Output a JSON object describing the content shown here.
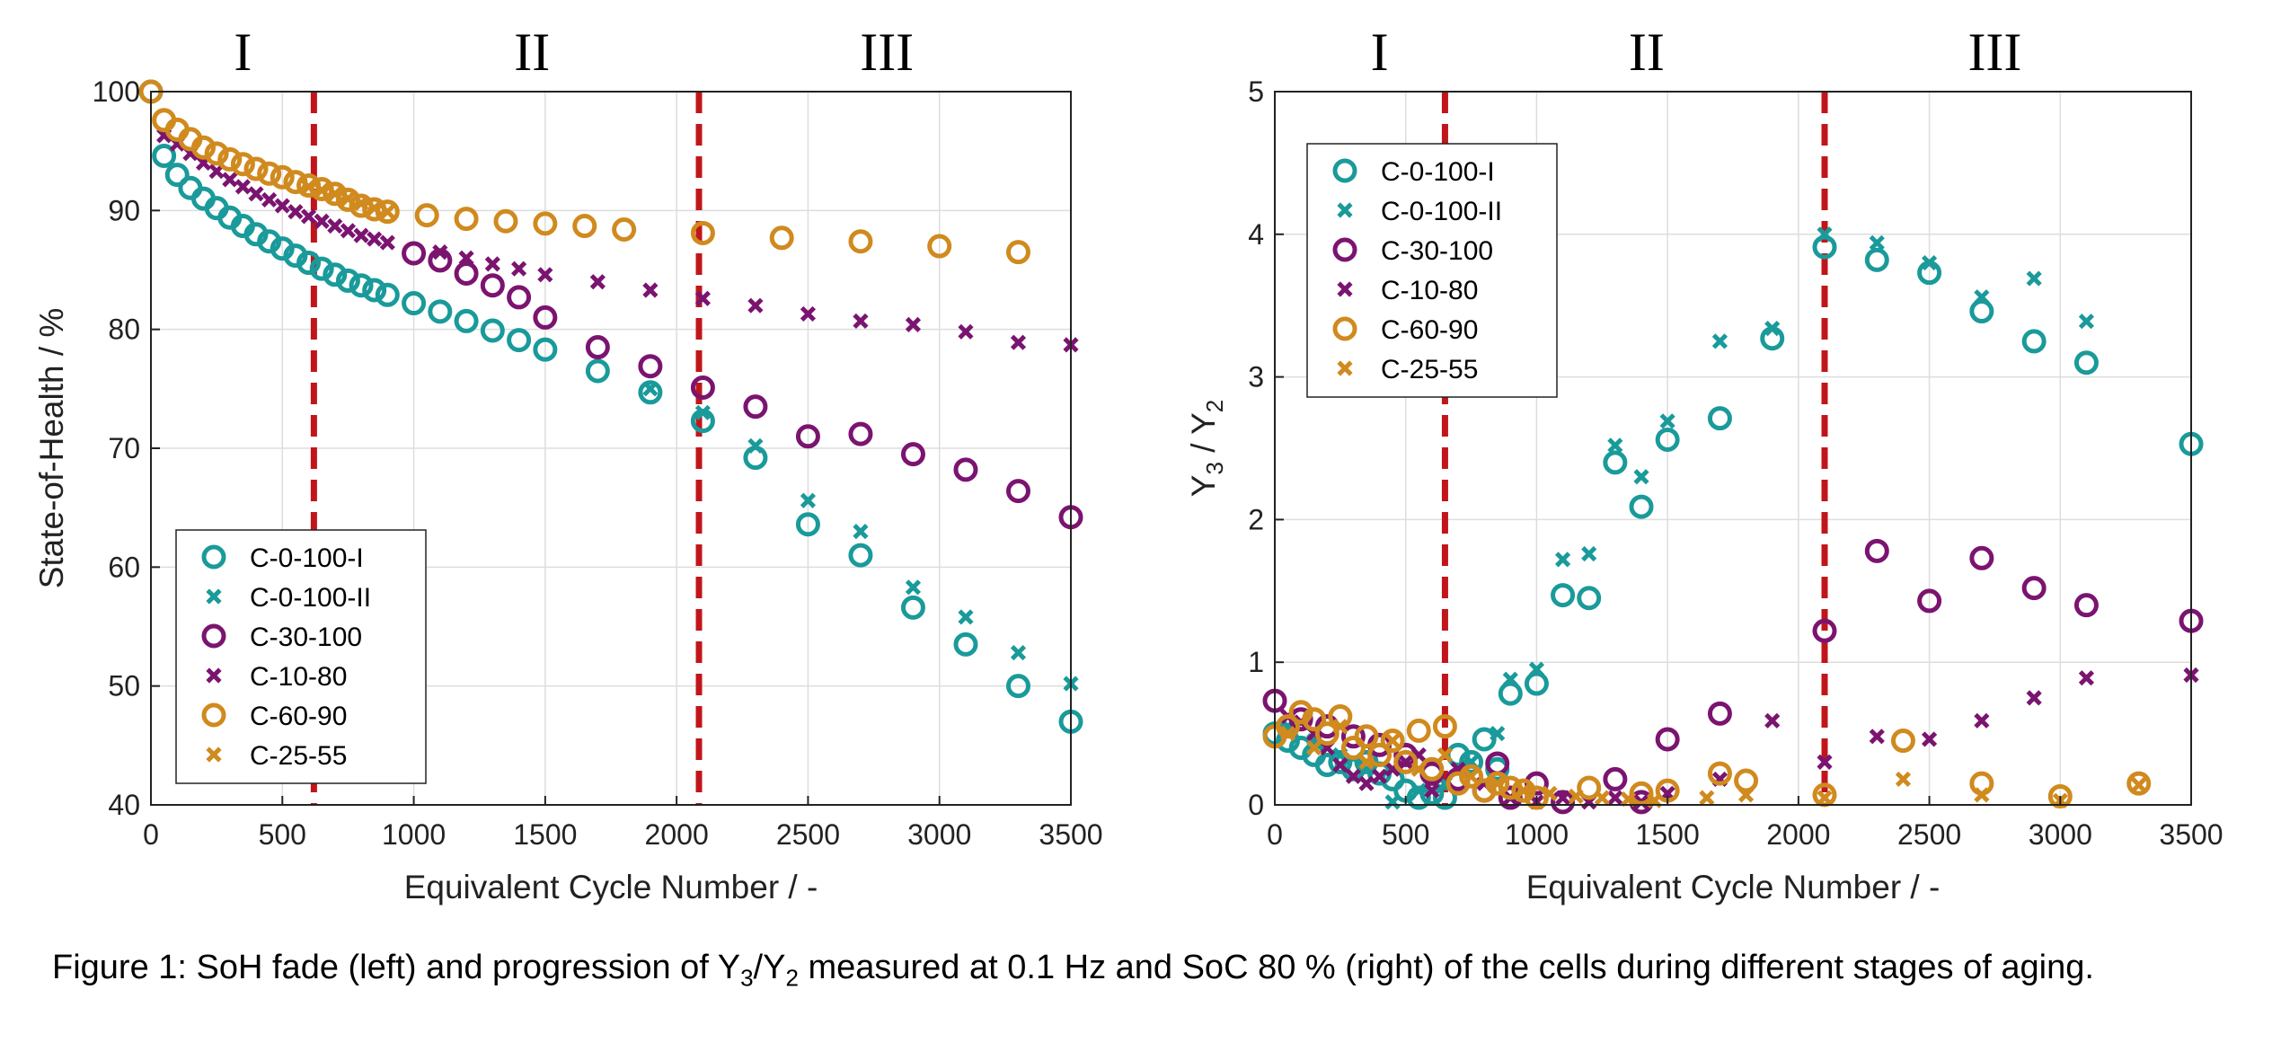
{
  "caption": {
    "part1": "Figure 1: SoH fade (left) and progression of Y",
    "sub1": "3",
    "part2": "/Y",
    "sub2": "2",
    "part3": " measured at 0.1 Hz and SoC 80 % (right) of the cells during different stages of aging."
  },
  "colors": {
    "teal": "#1a9a9a",
    "purple": "#7b1470",
    "orange": "#d08a1e",
    "stage_line": "#c0161b",
    "grid": "#dddddd"
  },
  "chart_data": [
    {
      "type": "scatter",
      "title": "",
      "xlabel": "Equivalent Cycle Number / -",
      "ylabel": "State-of-Health / %",
      "xlim": [
        0,
        3500
      ],
      "ylim": [
        40,
        100
      ],
      "xticks": [
        0,
        500,
        1000,
        1500,
        2000,
        2500,
        3000,
        3500
      ],
      "yticks": [
        40,
        50,
        60,
        70,
        80,
        90,
        100
      ],
      "grid": true,
      "legend_position": "bottom-left",
      "stage_lines": [
        620,
        2085
      ],
      "stages": [
        {
          "label": "I",
          "x": 350
        },
        {
          "label": "II",
          "x": 1450
        },
        {
          "label": "III",
          "x": 2800
        }
      ],
      "series": [
        {
          "name": "C-0-100-I",
          "marker": "o",
          "color": "#1a9a9a",
          "x": [
            0,
            50,
            100,
            150,
            200,
            250,
            300,
            350,
            400,
            450,
            500,
            550,
            600,
            650,
            700,
            750,
            800,
            850,
            900,
            1000,
            1100,
            1200,
            1300,
            1400,
            1500,
            1700,
            1900,
            2100,
            2300,
            2500,
            2700,
            2900,
            3100,
            3300,
            3500
          ],
          "y": [
            100,
            94.6,
            93.0,
            91.9,
            91.0,
            90.2,
            89.4,
            88.7,
            88.0,
            87.4,
            86.8,
            86.2,
            85.6,
            85.1,
            84.6,
            84.1,
            83.7,
            83.3,
            82.9,
            82.2,
            81.5,
            80.7,
            79.9,
            79.1,
            78.3,
            76.5,
            74.7,
            72.3,
            69.2,
            63.6,
            61.0,
            56.6,
            53.5,
            50.0,
            47.0
          ]
        },
        {
          "name": "C-0-100-II",
          "marker": "x",
          "color": "#1a9a9a",
          "x": [
            1900,
            2100,
            2300,
            2500,
            2700,
            2900,
            3100,
            3300,
            3500
          ],
          "y": [
            75.0,
            73.0,
            70.2,
            65.6,
            63.0,
            58.3,
            55.8,
            52.8,
            50.2
          ]
        },
        {
          "name": "C-30-100",
          "marker": "o",
          "color": "#7b1470",
          "x": [
            1000,
            1100,
            1200,
            1300,
            1400,
            1500,
            1700,
            1900,
            2100,
            2300,
            2500,
            2700,
            2900,
            3100,
            3300,
            3500
          ],
          "y": [
            86.4,
            85.8,
            84.7,
            83.7,
            82.7,
            81.0,
            78.5,
            76.9,
            75.1,
            73.5,
            71.0,
            71.2,
            69.5,
            68.2,
            66.4,
            64.2
          ]
        },
        {
          "name": "C-10-80",
          "marker": "x",
          "color": "#7b1470",
          "x": [
            50,
            100,
            150,
            200,
            250,
            300,
            350,
            400,
            450,
            500,
            550,
            600,
            650,
            700,
            750,
            800,
            850,
            900,
            1100,
            1200,
            1300,
            1400,
            1500,
            1700,
            1900,
            2100,
            2300,
            2500,
            2700,
            2900,
            3100,
            3300,
            3500
          ],
          "y": [
            96.3,
            95.6,
            94.8,
            94.0,
            93.3,
            92.6,
            92.0,
            91.4,
            90.9,
            90.4,
            89.9,
            89.5,
            89.1,
            88.7,
            88.3,
            87.9,
            87.6,
            87.3,
            86.5,
            86.0,
            85.5,
            85.1,
            84.6,
            84.0,
            83.3,
            82.6,
            82.0,
            81.3,
            80.7,
            80.4,
            79.8,
            78.9,
            78.7
          ]
        },
        {
          "name": "C-60-90",
          "marker": "o",
          "color": "#d08a1e",
          "x": [
            0,
            50,
            100,
            150,
            200,
            250,
            300,
            350,
            400,
            450,
            500,
            550,
            600,
            650,
            700,
            750,
            800,
            850,
            900,
            1050,
            1200,
            1350,
            1500,
            1650,
            1800,
            2100,
            2400,
            2700,
            3000,
            3300
          ],
          "y": [
            100,
            97.6,
            96.8,
            96.0,
            95.3,
            94.8,
            94.3,
            93.9,
            93.5,
            93.1,
            92.8,
            92.4,
            92.1,
            91.8,
            91.4,
            90.9,
            90.4,
            90.1,
            89.9,
            89.6,
            89.3,
            89.1,
            88.9,
            88.7,
            88.4,
            88.1,
            87.7,
            87.4,
            87.0,
            86.5
          ]
        },
        {
          "name": "C-25-55",
          "marker": "x",
          "color": "#d08a1e",
          "x": [
            600,
            650,
            700,
            750,
            800,
            850,
            900
          ],
          "y": [
            92.0,
            91.7,
            91.4,
            91.0,
            90.6,
            90.2,
            89.9
          ]
        }
      ]
    },
    {
      "type": "scatter",
      "title": "",
      "xlabel": "Equivalent Cycle Number / -",
      "ylabel_main": "Y",
      "ylabel_sub1": "3",
      "ylabel_mid": " / Y",
      "ylabel_sub2": "2",
      "xlim": [
        0,
        3500
      ],
      "ylim": [
        0,
        5
      ],
      "xticks": [
        0,
        500,
        1000,
        1500,
        2000,
        2500,
        3000,
        3500
      ],
      "yticks": [
        0,
        1,
        2,
        3,
        4,
        5
      ],
      "grid": true,
      "legend_position": "top-left",
      "stage_lines": [
        650,
        2100
      ],
      "stages": [
        {
          "label": "I",
          "x": 400
        },
        {
          "label": "II",
          "x": 1420
        },
        {
          "label": "III",
          "x": 2750
        }
      ],
      "series": [
        {
          "name": "C-0-100-I",
          "marker": "o",
          "color": "#1a9a9a",
          "x": [
            0,
            50,
            100,
            150,
            200,
            250,
            300,
            350,
            400,
            450,
            500,
            550,
            600,
            650,
            700,
            750,
            800,
            850,
            900,
            1000,
            1100,
            1200,
            1300,
            1400,
            1500,
            1700,
            1900,
            2100,
            2300,
            2500,
            2700,
            2900,
            3100,
            3500
          ],
          "y": [
            0.5,
            0.45,
            0.4,
            0.35,
            0.28,
            0.3,
            0.25,
            0.3,
            0.22,
            0.18,
            0.1,
            0.05,
            0.08,
            0.05,
            0.35,
            0.3,
            0.46,
            0.25,
            0.78,
            0.85,
            1.47,
            1.45,
            2.4,
            2.09,
            2.56,
            2.71,
            3.27,
            3.91,
            3.82,
            3.73,
            3.46,
            3.25,
            3.1,
            2.53
          ]
        },
        {
          "name": "C-0-100-II",
          "marker": "x",
          "color": "#1a9a9a",
          "x": [
            50,
            150,
            250,
            350,
            450,
            550,
            650,
            750,
            850,
            900,
            1000,
            1100,
            1200,
            1300,
            1400,
            1500,
            1700,
            1900,
            2100,
            2300,
            2500,
            2700,
            2900,
            3100
          ],
          "y": [
            0.55,
            0.45,
            0.35,
            0.25,
            0.02,
            0.1,
            0.15,
            0.3,
            0.5,
            0.88,
            0.95,
            1.72,
            1.76,
            2.52,
            2.3,
            2.69,
            3.25,
            3.34,
            4.0,
            3.94,
            3.8,
            3.56,
            3.69,
            3.39
          ]
        },
        {
          "name": "C-30-100",
          "marker": "o",
          "color": "#7b1470",
          "x": [
            0,
            100,
            200,
            300,
            400,
            500,
            600,
            700,
            800,
            850,
            900,
            1000,
            1100,
            1300,
            1400,
            1500,
            1700,
            2100,
            2300,
            2500,
            2700,
            2900,
            3100,
            3500
          ],
          "y": [
            0.73,
            0.6,
            0.55,
            0.48,
            0.42,
            0.35,
            0.22,
            0.18,
            0.1,
            0.29,
            0.05,
            0.15,
            0.02,
            0.18,
            0.02,
            0.46,
            0.64,
            1.22,
            1.78,
            1.43,
            1.73,
            1.52,
            1.4,
            1.29
          ]
        },
        {
          "name": "C-10-80",
          "marker": "x",
          "color": "#7b1470",
          "x": [
            50,
            100,
            150,
            200,
            250,
            300,
            350,
            400,
            450,
            500,
            550,
            600,
            700,
            800,
            900,
            1000,
            1100,
            1200,
            1300,
            1400,
            1500,
            1700,
            1900,
            2100,
            2300,
            2500,
            2700,
            2900,
            3100,
            3500
          ],
          "y": [
            0.62,
            0.58,
            0.5,
            0.4,
            0.28,
            0.2,
            0.15,
            0.2,
            0.25,
            0.3,
            0.35,
            0.1,
            0.25,
            0.15,
            0.05,
            0.02,
            0.05,
            0.02,
            0.05,
            0.02,
            0.08,
            0.18,
            0.59,
            0.3,
            0.48,
            0.46,
            0.59,
            0.75,
            0.89,
            0.91
          ]
        },
        {
          "name": "C-60-90",
          "marker": "o",
          "color": "#d08a1e",
          "x": [
            0,
            50,
            100,
            150,
            200,
            250,
            300,
            350,
            400,
            450,
            500,
            550,
            600,
            650,
            700,
            750,
            800,
            850,
            900,
            950,
            1000,
            1200,
            1400,
            1500,
            1700,
            1800,
            2100,
            2400,
            2700,
            3000,
            3300
          ],
          "y": [
            0.48,
            0.55,
            0.65,
            0.6,
            0.5,
            0.62,
            0.4,
            0.48,
            0.35,
            0.45,
            0.3,
            0.52,
            0.25,
            0.55,
            0.15,
            0.2,
            0.1,
            0.15,
            0.12,
            0.1,
            0.05,
            0.12,
            0.08,
            0.1,
            0.22,
            0.17,
            0.07,
            0.45,
            0.15,
            0.06,
            0.15
          ]
        },
        {
          "name": "C-25-55",
          "marker": "x",
          "color": "#d08a1e",
          "x": [
            50,
            150,
            250,
            350,
            450,
            550,
            650,
            750,
            850,
            950,
            1050,
            1150,
            1250,
            1350,
            1450,
            1650,
            1800,
            2100,
            2400,
            2700,
            3000,
            3300
          ],
          "y": [
            0.5,
            0.4,
            0.55,
            0.3,
            0.45,
            0.25,
            0.35,
            0.2,
            0.15,
            0.1,
            0.08,
            0.06,
            0.05,
            0.04,
            0.03,
            0.05,
            0.07,
            0.05,
            0.18,
            0.07,
            0.03,
            0.14
          ]
        }
      ]
    }
  ]
}
